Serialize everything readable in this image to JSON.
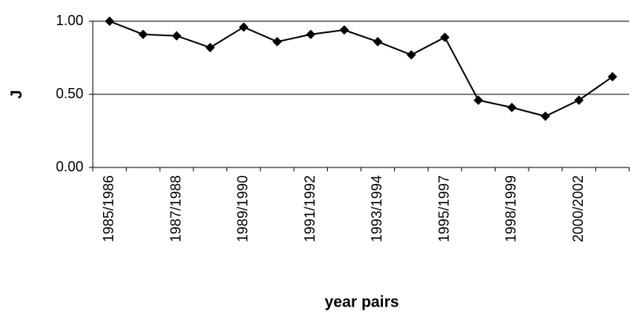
{
  "chart_data": {
    "type": "line",
    "xlabel": "year pairs",
    "ylabel": "J",
    "categories": [
      "1985/1986",
      null,
      "1987/1988",
      null,
      "1989/1990",
      null,
      "1991/1992",
      null,
      "1993/1994",
      null,
      "1995/1997",
      null,
      "1998/1999",
      null,
      "2000/2002",
      null
    ],
    "series": [
      {
        "color": "#000000",
        "values": [
          1.0,
          0.91,
          0.9,
          0.82,
          0.96,
          0.86,
          0.91,
          0.94,
          0.86,
          0.77,
          0.89,
          0.46,
          0.41,
          0.35,
          0.46,
          0.62
        ]
      }
    ],
    "ylim": [
      0,
      1
    ],
    "yticks": [
      {
        "value": 0,
        "label": "0.00"
      },
      {
        "value": 0.5,
        "label": "0.50"
      },
      {
        "value": 1,
        "label": "1.00"
      }
    ],
    "grid": true
  }
}
